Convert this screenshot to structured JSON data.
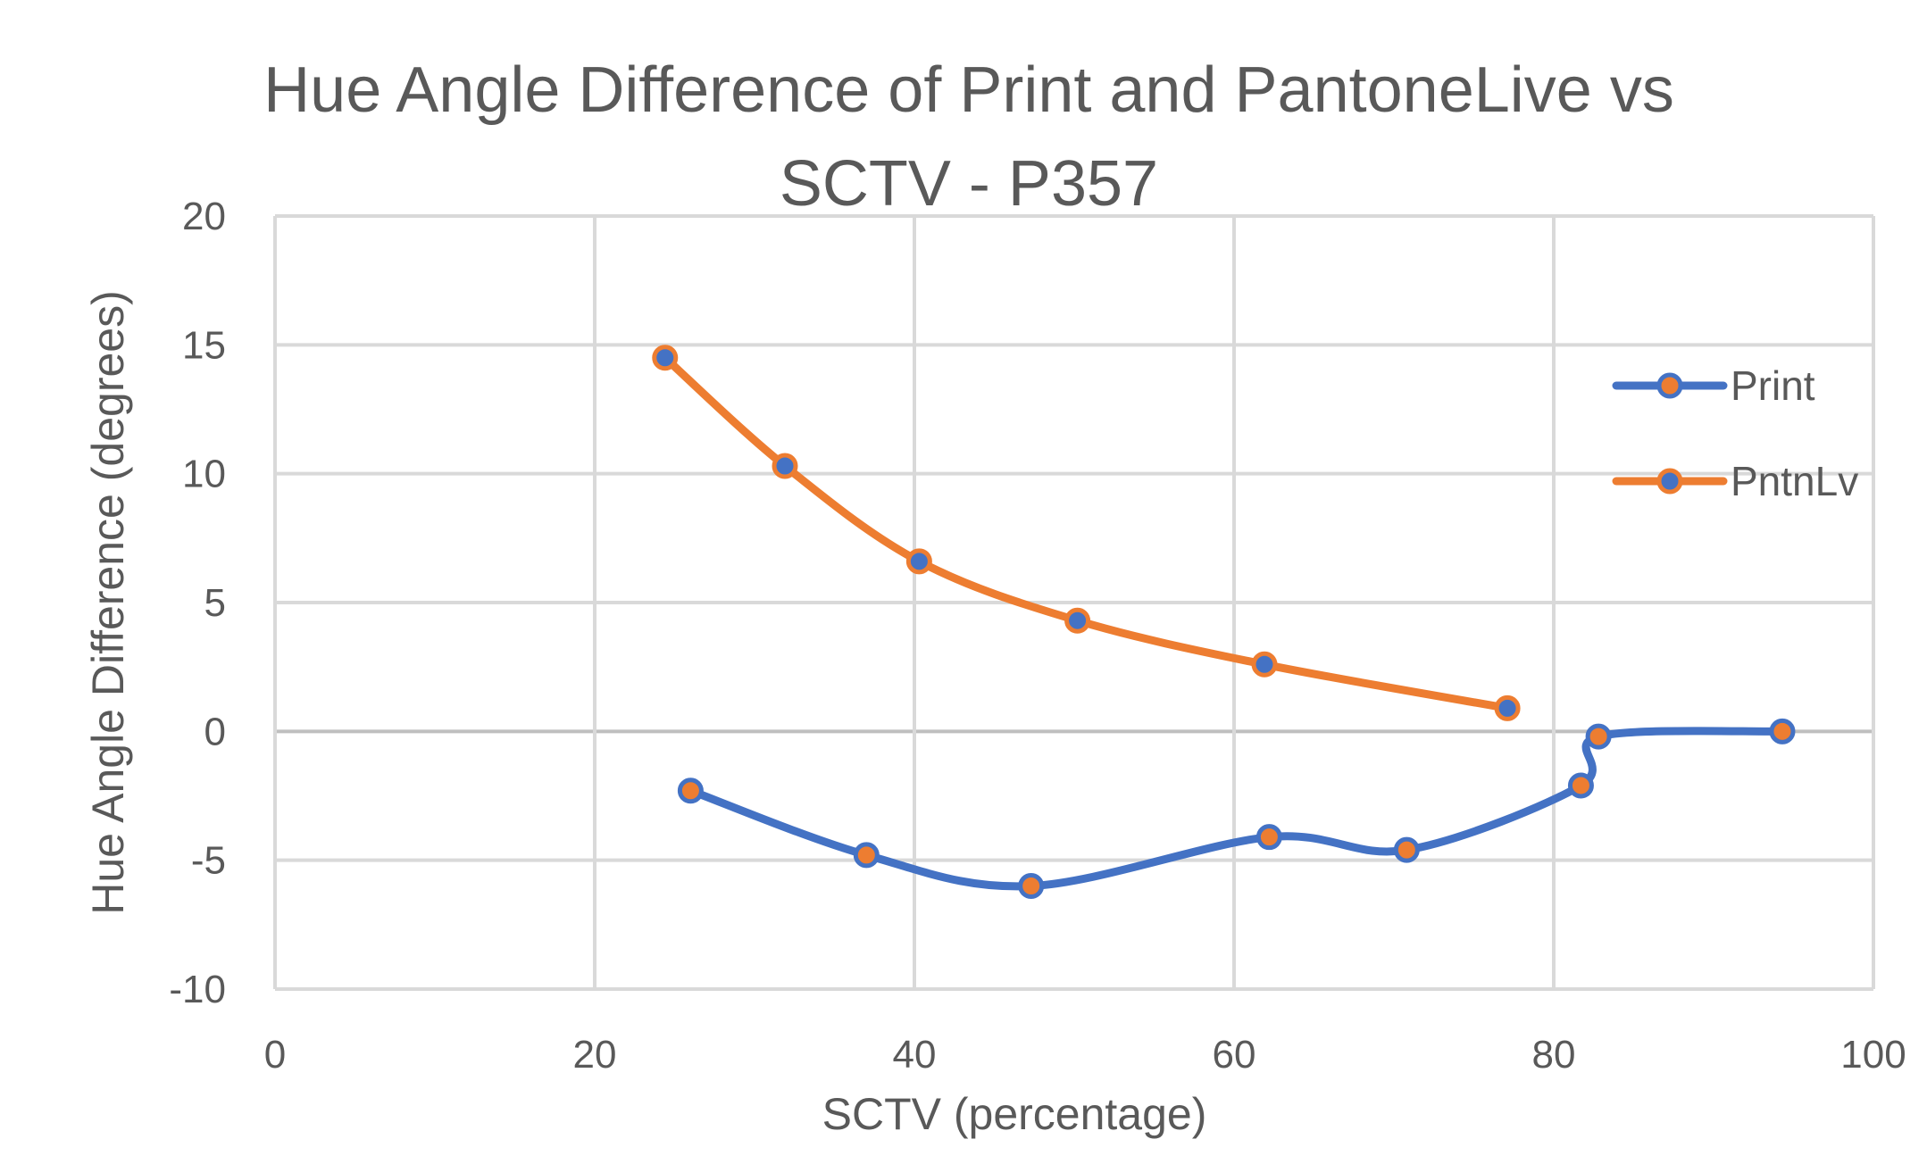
{
  "chart_data": {
    "type": "line",
    "title_lines": [
      "Hue Angle Difference of Print and PantoneLive vs",
      "SCTV - P357"
    ],
    "xlabel": "SCTV (percentage)",
    "ylabel": "Hue Angle Difference  (degrees)",
    "xlim": [
      0,
      100
    ],
    "ylim": [
      -10,
      20
    ],
    "xticks": [
      0,
      20,
      40,
      60,
      80,
      100
    ],
    "yticks": [
      -10,
      -5,
      0,
      5,
      10,
      15,
      20
    ],
    "grid": true,
    "legend_position": "right",
    "series": [
      {
        "name": "Print",
        "color": "#4472C4",
        "marker_fill": "#ED7D31",
        "x": [
          26,
          37,
          47.3,
          62.2,
          70.8,
          81.7,
          82.8,
          94.3
        ],
        "y": [
          -2.3,
          -4.8,
          -6.0,
          -4.1,
          -4.6,
          -2.1,
          -0.2,
          0.0
        ]
      },
      {
        "name": "PntnLv",
        "color": "#ED7D31",
        "marker_fill": "#4472C4",
        "x": [
          24.4,
          31.9,
          40.3,
          50.2,
          61.9,
          77.1
        ],
        "y": [
          14.5,
          10.3,
          6.6,
          4.3,
          2.6,
          0.9
        ]
      }
    ]
  }
}
